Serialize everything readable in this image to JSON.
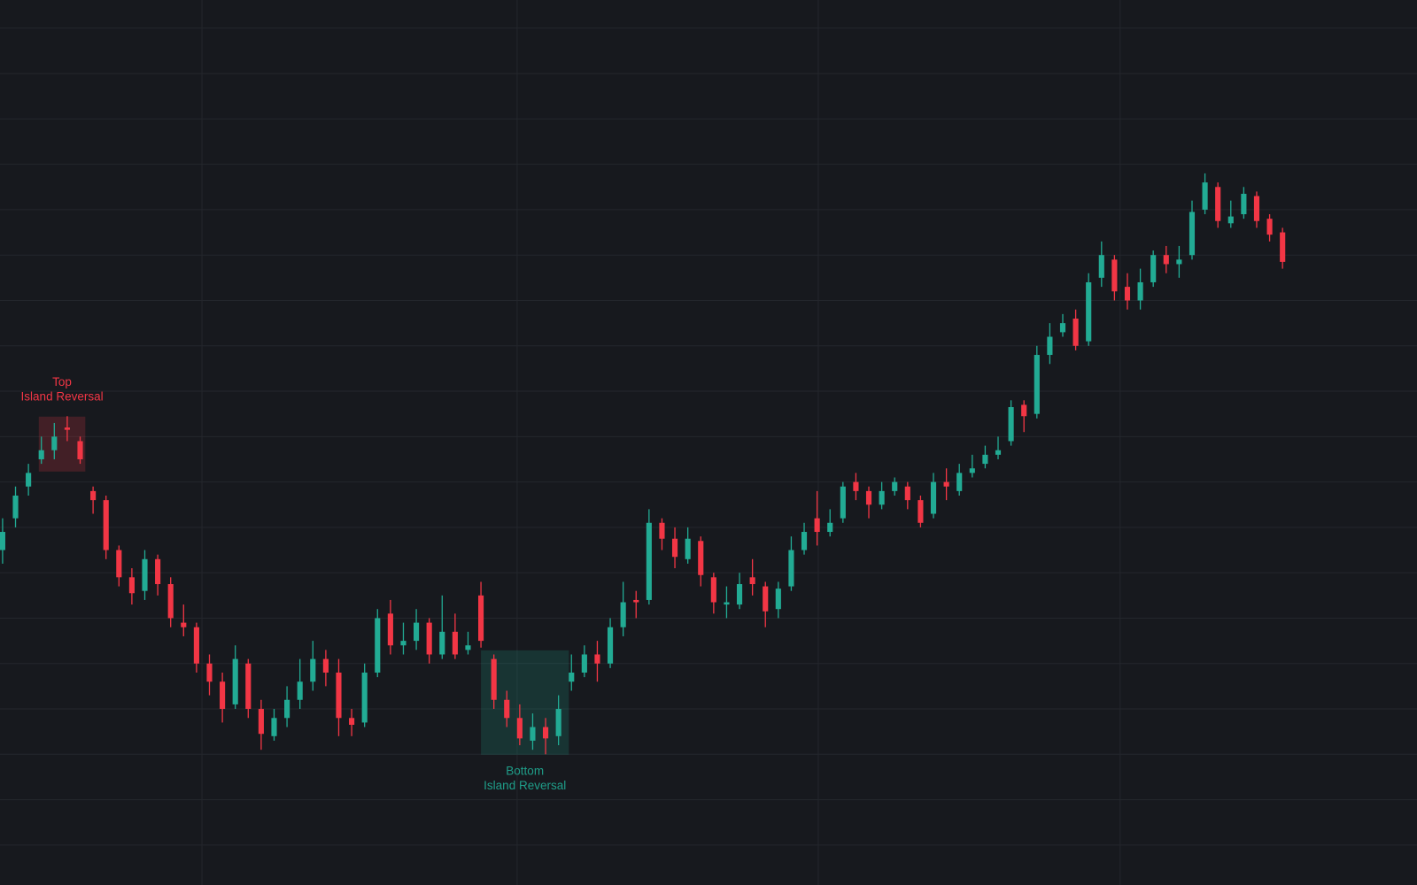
{
  "chart_data": {
    "type": "candlestick",
    "grid": true,
    "up_color": "#22ab94",
    "down_color": "#f23645",
    "grid_color": "#24272d",
    "background": "#17191e",
    "xlim": [
      -0.2,
      109.4
    ],
    "xticks": [
      15.42,
      39.8,
      63.09,
      86.44
    ],
    "ylim": [
      -0.49,
      18.62
    ],
    "yticks": [
      0,
      1,
      2,
      3,
      4,
      5,
      6,
      7,
      8,
      9,
      10,
      11,
      12,
      13,
      14,
      15,
      16,
      17,
      18
    ],
    "open": [
      6.5,
      7.2,
      7.9,
      8.5,
      8.7,
      9.2,
      8.9,
      7.8,
      7.6,
      6.5,
      5.9,
      5.6,
      6.3,
      5.75,
      4.9,
      4.8,
      4.0,
      3.6,
      3.1,
      4.0,
      3.0,
      2.4,
      2.8,
      3.2,
      3.6,
      4.1,
      3.8,
      2.8,
      2.7,
      3.8,
      5.1,
      4.4,
      4.5,
      4.9,
      4.2,
      4.7,
      4.3,
      5.5,
      4.1,
      3.2,
      2.8,
      2.3,
      2.6,
      2.4,
      3.6,
      3.8,
      4.2,
      4.0,
      4.8,
      5.4,
      5.4,
      7.1,
      6.75,
      6.3,
      6.7,
      5.9,
      5.3,
      5.3,
      5.9,
      5.7,
      5.2,
      5.7,
      6.5,
      7.2,
      6.9,
      7.2,
      8.0,
      7.8,
      7.5,
      7.8,
      7.9,
      7.6,
      7.3,
      8.0,
      7.8,
      8.2,
      8.4,
      8.6,
      8.9,
      9.7,
      9.5,
      10.8,
      11.3,
      11.6,
      11.1,
      12.5,
      12.9,
      12.3,
      12.0,
      12.4,
      13.0,
      12.8,
      13.0,
      14.0,
      14.5,
      13.7,
      13.9,
      14.3,
      13.8,
      13.5
    ],
    "high": [
      7.2,
      7.9,
      8.4,
      9.0,
      9.3,
      9.45,
      9.0,
      7.9,
      7.7,
      6.6,
      6.1,
      6.5,
      6.4,
      5.9,
      5.3,
      4.9,
      4.2,
      3.8,
      4.4,
      4.1,
      3.2,
      3.0,
      3.5,
      4.1,
      4.5,
      4.3,
      4.1,
      3.0,
      4.0,
      5.2,
      5.4,
      4.9,
      5.2,
      5.0,
      5.5,
      5.1,
      4.7,
      5.8,
      4.2,
      3.4,
      3.1,
      2.9,
      2.8,
      3.3,
      4.2,
      4.4,
      4.5,
      5.0,
      5.8,
      5.6,
      7.4,
      7.2,
      7.0,
      7.0,
      6.8,
      6.0,
      5.7,
      6.0,
      6.3,
      5.8,
      5.8,
      6.8,
      7.1,
      7.8,
      7.4,
      8.0,
      8.2,
      7.9,
      8.0,
      8.1,
      8.0,
      7.7,
      8.2,
      8.3,
      8.4,
      8.6,
      8.8,
      9.0,
      9.8,
      9.8,
      11.0,
      11.5,
      11.7,
      11.8,
      12.6,
      13.3,
      13.0,
      12.6,
      12.7,
      13.1,
      13.2,
      13.2,
      14.2,
      14.8,
      14.6,
      14.2,
      14.5,
      14.4,
      13.9,
      13.6
    ],
    "low": [
      6.2,
      7.0,
      7.7,
      8.4,
      8.5,
      8.9,
      8.4,
      7.3,
      6.3,
      5.7,
      5.3,
      5.4,
      5.5,
      4.8,
      4.6,
      3.8,
      3.3,
      2.7,
      3.0,
      2.8,
      2.1,
      2.3,
      2.6,
      3.0,
      3.4,
      3.5,
      2.4,
      2.4,
      2.6,
      3.7,
      4.2,
      4.2,
      4.3,
      4.0,
      4.1,
      4.1,
      4.2,
      4.35,
      3.0,
      2.6,
      2.2,
      2.1,
      2.0,
      2.2,
      3.4,
      3.7,
      3.6,
      3.9,
      4.6,
      5.0,
      5.3,
      6.5,
      6.1,
      6.2,
      5.7,
      5.1,
      5.0,
      5.2,
      5.5,
      4.8,
      5.0,
      5.6,
      6.4,
      6.6,
      6.8,
      7.1,
      7.6,
      7.2,
      7.4,
      7.7,
      7.4,
      7.0,
      7.2,
      7.6,
      7.7,
      8.1,
      8.3,
      8.5,
      8.8,
      9.1,
      9.4,
      10.6,
      11.2,
      10.9,
      11.0,
      12.3,
      12.0,
      11.8,
      11.8,
      12.3,
      12.6,
      12.5,
      12.9,
      13.9,
      13.6,
      13.6,
      13.8,
      13.6,
      13.3,
      12.7
    ],
    "close": [
      6.9,
      7.7,
      8.2,
      8.7,
      9.0,
      9.15,
      8.5,
      7.6,
      6.5,
      5.9,
      5.55,
      6.3,
      5.75,
      5.0,
      4.8,
      4.0,
      3.6,
      3.0,
      4.1,
      3.0,
      2.45,
      2.8,
      3.2,
      3.6,
      4.1,
      3.8,
      2.8,
      2.65,
      3.8,
      5.0,
      4.4,
      4.5,
      4.9,
      4.2,
      4.7,
      4.2,
      4.4,
      4.5,
      3.2,
      2.8,
      2.35,
      2.6,
      2.35,
      3.0,
      3.8,
      4.2,
      4.0,
      4.8,
      5.35,
      5.35,
      7.1,
      6.75,
      6.35,
      6.75,
      5.95,
      5.35,
      5.35,
      5.75,
      5.75,
      5.15,
      5.65,
      6.5,
      6.9,
      6.9,
      7.1,
      7.9,
      7.8,
      7.5,
      7.8,
      8.0,
      7.6,
      7.1,
      8.0,
      7.9,
      8.2,
      8.3,
      8.6,
      8.7,
      9.65,
      9.45,
      10.8,
      11.2,
      11.5,
      11.0,
      12.4,
      13.0,
      12.2,
      12.0,
      12.4,
      13.0,
      12.8,
      12.9,
      13.95,
      14.6,
      13.75,
      13.85,
      14.35,
      13.75,
      13.45,
      12.85
    ],
    "annotations": [
      {
        "lines": [
          "Top",
          "Island Reversal"
        ],
        "color": "#f23645",
        "x_range": [
          2.8,
          6.4
        ],
        "y_range": [
          8.23,
          9.44
        ],
        "label_position": "above"
      },
      {
        "lines": [
          "Bottom",
          "Island Reversal"
        ],
        "color": "#1f9e89",
        "x_range": [
          37.0,
          43.8
        ],
        "y_range": [
          1.99,
          4.29
        ],
        "label_position": "below"
      }
    ]
  }
}
